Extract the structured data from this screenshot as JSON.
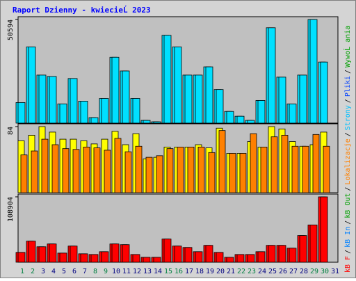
{
  "chart_data": {
    "type": "bar",
    "title": "Raport Dzienny -  kwiecieĹ  2023",
    "categories": [
      "1",
      "2",
      "3",
      "4",
      "5",
      "6",
      "7",
      "8",
      "9",
      "10",
      "11",
      "12",
      "13",
      "14",
      "15",
      "16",
      "17",
      "18",
      "19",
      "20",
      "21",
      "22",
      "23",
      "24",
      "25",
      "26",
      "27",
      "28",
      "29",
      "30",
      "31"
    ],
    "category_colors": [
      "#008040",
      "#008040",
      "#000080",
      "#000080",
      "#000080",
      "#000080",
      "#000080",
      "#008040",
      "#008040",
      "#000080",
      "#000080",
      "#000080",
      "#000080",
      "#000080",
      "#008040",
      "#008040",
      "#000080",
      "#000080",
      "#000080",
      "#000080",
      "#000080",
      "#008040",
      "#008040",
      "#000080",
      "#000080",
      "#000080",
      "#000080",
      "#000080",
      "#008040",
      "#008040",
      "#000080"
    ],
    "right_label": [
      {
        "text": "kB F",
        "color": "#ff0000"
      },
      {
        "text": "/",
        "color": "#000000"
      },
      {
        "text": "kB In",
        "color": "#0080ff"
      },
      {
        "text": "/",
        "color": "#000000"
      },
      {
        "text": "kB Out",
        "color": "#00a000"
      },
      {
        "text": "/",
        "color": "#000000"
      },
      {
        "text": "Lokalizacje",
        "color": "#ff8000"
      },
      {
        "text": "/",
        "color": "#000000"
      },
      {
        "text": "Strony",
        "color": "#00c0ff"
      },
      {
        "text": "/",
        "color": "#000000"
      },
      {
        "text": "Pliki",
        "color": "#0040ff"
      },
      {
        "text": "/",
        "color": "#000000"
      },
      {
        "text": "WywoĹ ania",
        "color": "#00a000"
      }
    ],
    "panels": [
      {
        "ylim": [
          0,
          50594
        ],
        "yticks": [
          50594
        ],
        "series": [
          {
            "color": "#00e0ff",
            "values": [
              10052,
              37192,
              23454,
              22784,
              9381,
              21779,
              10722,
              2680,
              12062,
              32166,
              25465,
              12062,
              1340,
              670,
              42888,
              37192,
              23454,
              23454,
              27475,
              16418,
              5696,
              3350,
              1340,
              11057,
              46574,
              22449,
              9381,
              23454,
              50594,
              29820,
              null
            ]
          }
        ]
      },
      {
        "ylim": [
          0,
          84
        ],
        "yticks": [
          84
        ],
        "series": [
          {
            "color": "#ffff00",
            "values": [
              66,
              73,
              84,
              77,
              68,
              68,
              66,
              62,
              68,
              78,
              61,
              75,
              43,
              45,
              58,
              58,
              58,
              61,
              57,
              82,
              50,
              50,
              65,
              58,
              84,
              81,
              65,
              59,
              61,
              77,
              null
            ]
          },
          {
            "color": "#ff8000",
            "values": [
              48,
              53,
              68,
              61,
              56,
              55,
              58,
              57,
              54,
              69,
              52,
              59,
              45,
              47,
              56,
              58,
              58,
              58,
              51,
              79,
              50,
              50,
              75,
              58,
              71,
              73,
              59,
              59,
              74,
              59,
              null
            ]
          }
        ]
      },
      {
        "ylim": [
          0,
          108904
        ],
        "yticks": [
          108904
        ],
        "series": [
          {
            "color": "#ff0000",
            "values": [
              16394,
              35131,
              25762,
              30446,
              15223,
              26933,
              14052,
              12881,
              17565,
              30446,
              29275,
              12881,
              8197,
              8197,
              38643,
              26933,
              24591,
              17565,
              28104,
              16394,
              8197,
              12881,
              12881,
              17565,
              28104,
              28104,
              23420,
              44498,
              62063,
              108904,
              null
            ]
          }
        ]
      }
    ]
  }
}
